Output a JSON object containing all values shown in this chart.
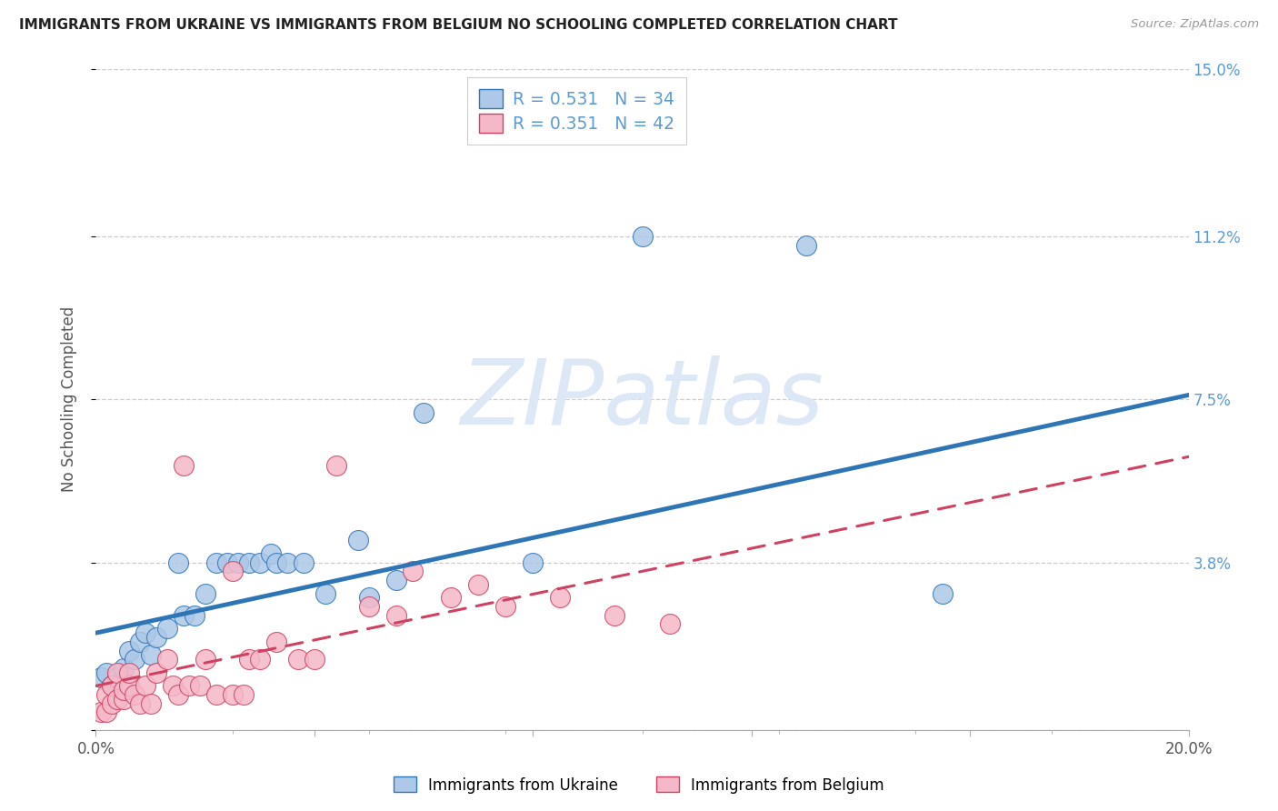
{
  "title": "IMMIGRANTS FROM UKRAINE VS IMMIGRANTS FROM BELGIUM NO SCHOOLING COMPLETED CORRELATION CHART",
  "source": "Source: ZipAtlas.com",
  "ylabel": "No Schooling Completed",
  "xlim": [
    0.0,
    0.2
  ],
  "ylim": [
    0.0,
    0.15
  ],
  "ytick_positions": [
    0.0,
    0.038,
    0.075,
    0.112,
    0.15
  ],
  "ytick_labels": [
    "",
    "3.8%",
    "7.5%",
    "11.2%",
    "15.0%"
  ],
  "xtick_positions": [
    0.0,
    0.04,
    0.08,
    0.12,
    0.16,
    0.2
  ],
  "xtick_labels": [
    "0.0%",
    "",
    "",
    "",
    "",
    "20.0%"
  ],
  "ukraine_R": "0.531",
  "ukraine_N": "34",
  "belgium_R": "0.351",
  "belgium_N": "42",
  "ukraine_scatter_color": "#adc8e8",
  "ukraine_line_color": "#2e75b6",
  "belgium_scatter_color": "#f5b8c8",
  "belgium_line_color": "#d04060",
  "watermark_text": "ZIPatlas",
  "watermark_color": "#dce8f5",
  "ukraine_line_x0": 0.0,
  "ukraine_line_y0": 0.022,
  "ukraine_line_x1": 0.2,
  "ukraine_line_y1": 0.076,
  "belgium_line_x0": 0.0,
  "belgium_line_y0": 0.01,
  "belgium_line_x1": 0.2,
  "belgium_line_y1": 0.062,
  "ukraine_points": [
    [
      0.001,
      0.012
    ],
    [
      0.002,
      0.013
    ],
    [
      0.003,
      0.01
    ],
    [
      0.004,
      0.012
    ],
    [
      0.005,
      0.014
    ],
    [
      0.006,
      0.018
    ],
    [
      0.007,
      0.016
    ],
    [
      0.008,
      0.02
    ],
    [
      0.009,
      0.022
    ],
    [
      0.01,
      0.017
    ],
    [
      0.011,
      0.021
    ],
    [
      0.013,
      0.023
    ],
    [
      0.015,
      0.038
    ],
    [
      0.016,
      0.026
    ],
    [
      0.018,
      0.026
    ],
    [
      0.02,
      0.031
    ],
    [
      0.022,
      0.038
    ],
    [
      0.024,
      0.038
    ],
    [
      0.026,
      0.038
    ],
    [
      0.028,
      0.038
    ],
    [
      0.03,
      0.038
    ],
    [
      0.032,
      0.04
    ],
    [
      0.033,
      0.038
    ],
    [
      0.035,
      0.038
    ],
    [
      0.038,
      0.038
    ],
    [
      0.042,
      0.031
    ],
    [
      0.048,
      0.043
    ],
    [
      0.05,
      0.03
    ],
    [
      0.055,
      0.034
    ],
    [
      0.06,
      0.072
    ],
    [
      0.08,
      0.038
    ],
    [
      0.1,
      0.112
    ],
    [
      0.13,
      0.11
    ],
    [
      0.155,
      0.031
    ]
  ],
  "belgium_points": [
    [
      0.001,
      0.004
    ],
    [
      0.002,
      0.004
    ],
    [
      0.002,
      0.008
    ],
    [
      0.003,
      0.006
    ],
    [
      0.003,
      0.01
    ],
    [
      0.004,
      0.007
    ],
    [
      0.004,
      0.013
    ],
    [
      0.005,
      0.007
    ],
    [
      0.005,
      0.009
    ],
    [
      0.006,
      0.01
    ],
    [
      0.006,
      0.013
    ],
    [
      0.007,
      0.008
    ],
    [
      0.008,
      0.006
    ],
    [
      0.009,
      0.01
    ],
    [
      0.01,
      0.006
    ],
    [
      0.011,
      0.013
    ],
    [
      0.013,
      0.016
    ],
    [
      0.014,
      0.01
    ],
    [
      0.015,
      0.008
    ],
    [
      0.016,
      0.06
    ],
    [
      0.017,
      0.01
    ],
    [
      0.019,
      0.01
    ],
    [
      0.02,
      0.016
    ],
    [
      0.022,
      0.008
    ],
    [
      0.025,
      0.008
    ],
    [
      0.027,
      0.008
    ],
    [
      0.028,
      0.016
    ],
    [
      0.03,
      0.016
    ],
    [
      0.033,
      0.02
    ],
    [
      0.037,
      0.016
    ],
    [
      0.04,
      0.016
    ],
    [
      0.044,
      0.06
    ],
    [
      0.05,
      0.028
    ],
    [
      0.055,
      0.026
    ],
    [
      0.058,
      0.036
    ],
    [
      0.065,
      0.03
    ],
    [
      0.07,
      0.033
    ],
    [
      0.075,
      0.028
    ],
    [
      0.085,
      0.03
    ],
    [
      0.095,
      0.026
    ],
    [
      0.105,
      0.024
    ],
    [
      0.025,
      0.036
    ]
  ]
}
